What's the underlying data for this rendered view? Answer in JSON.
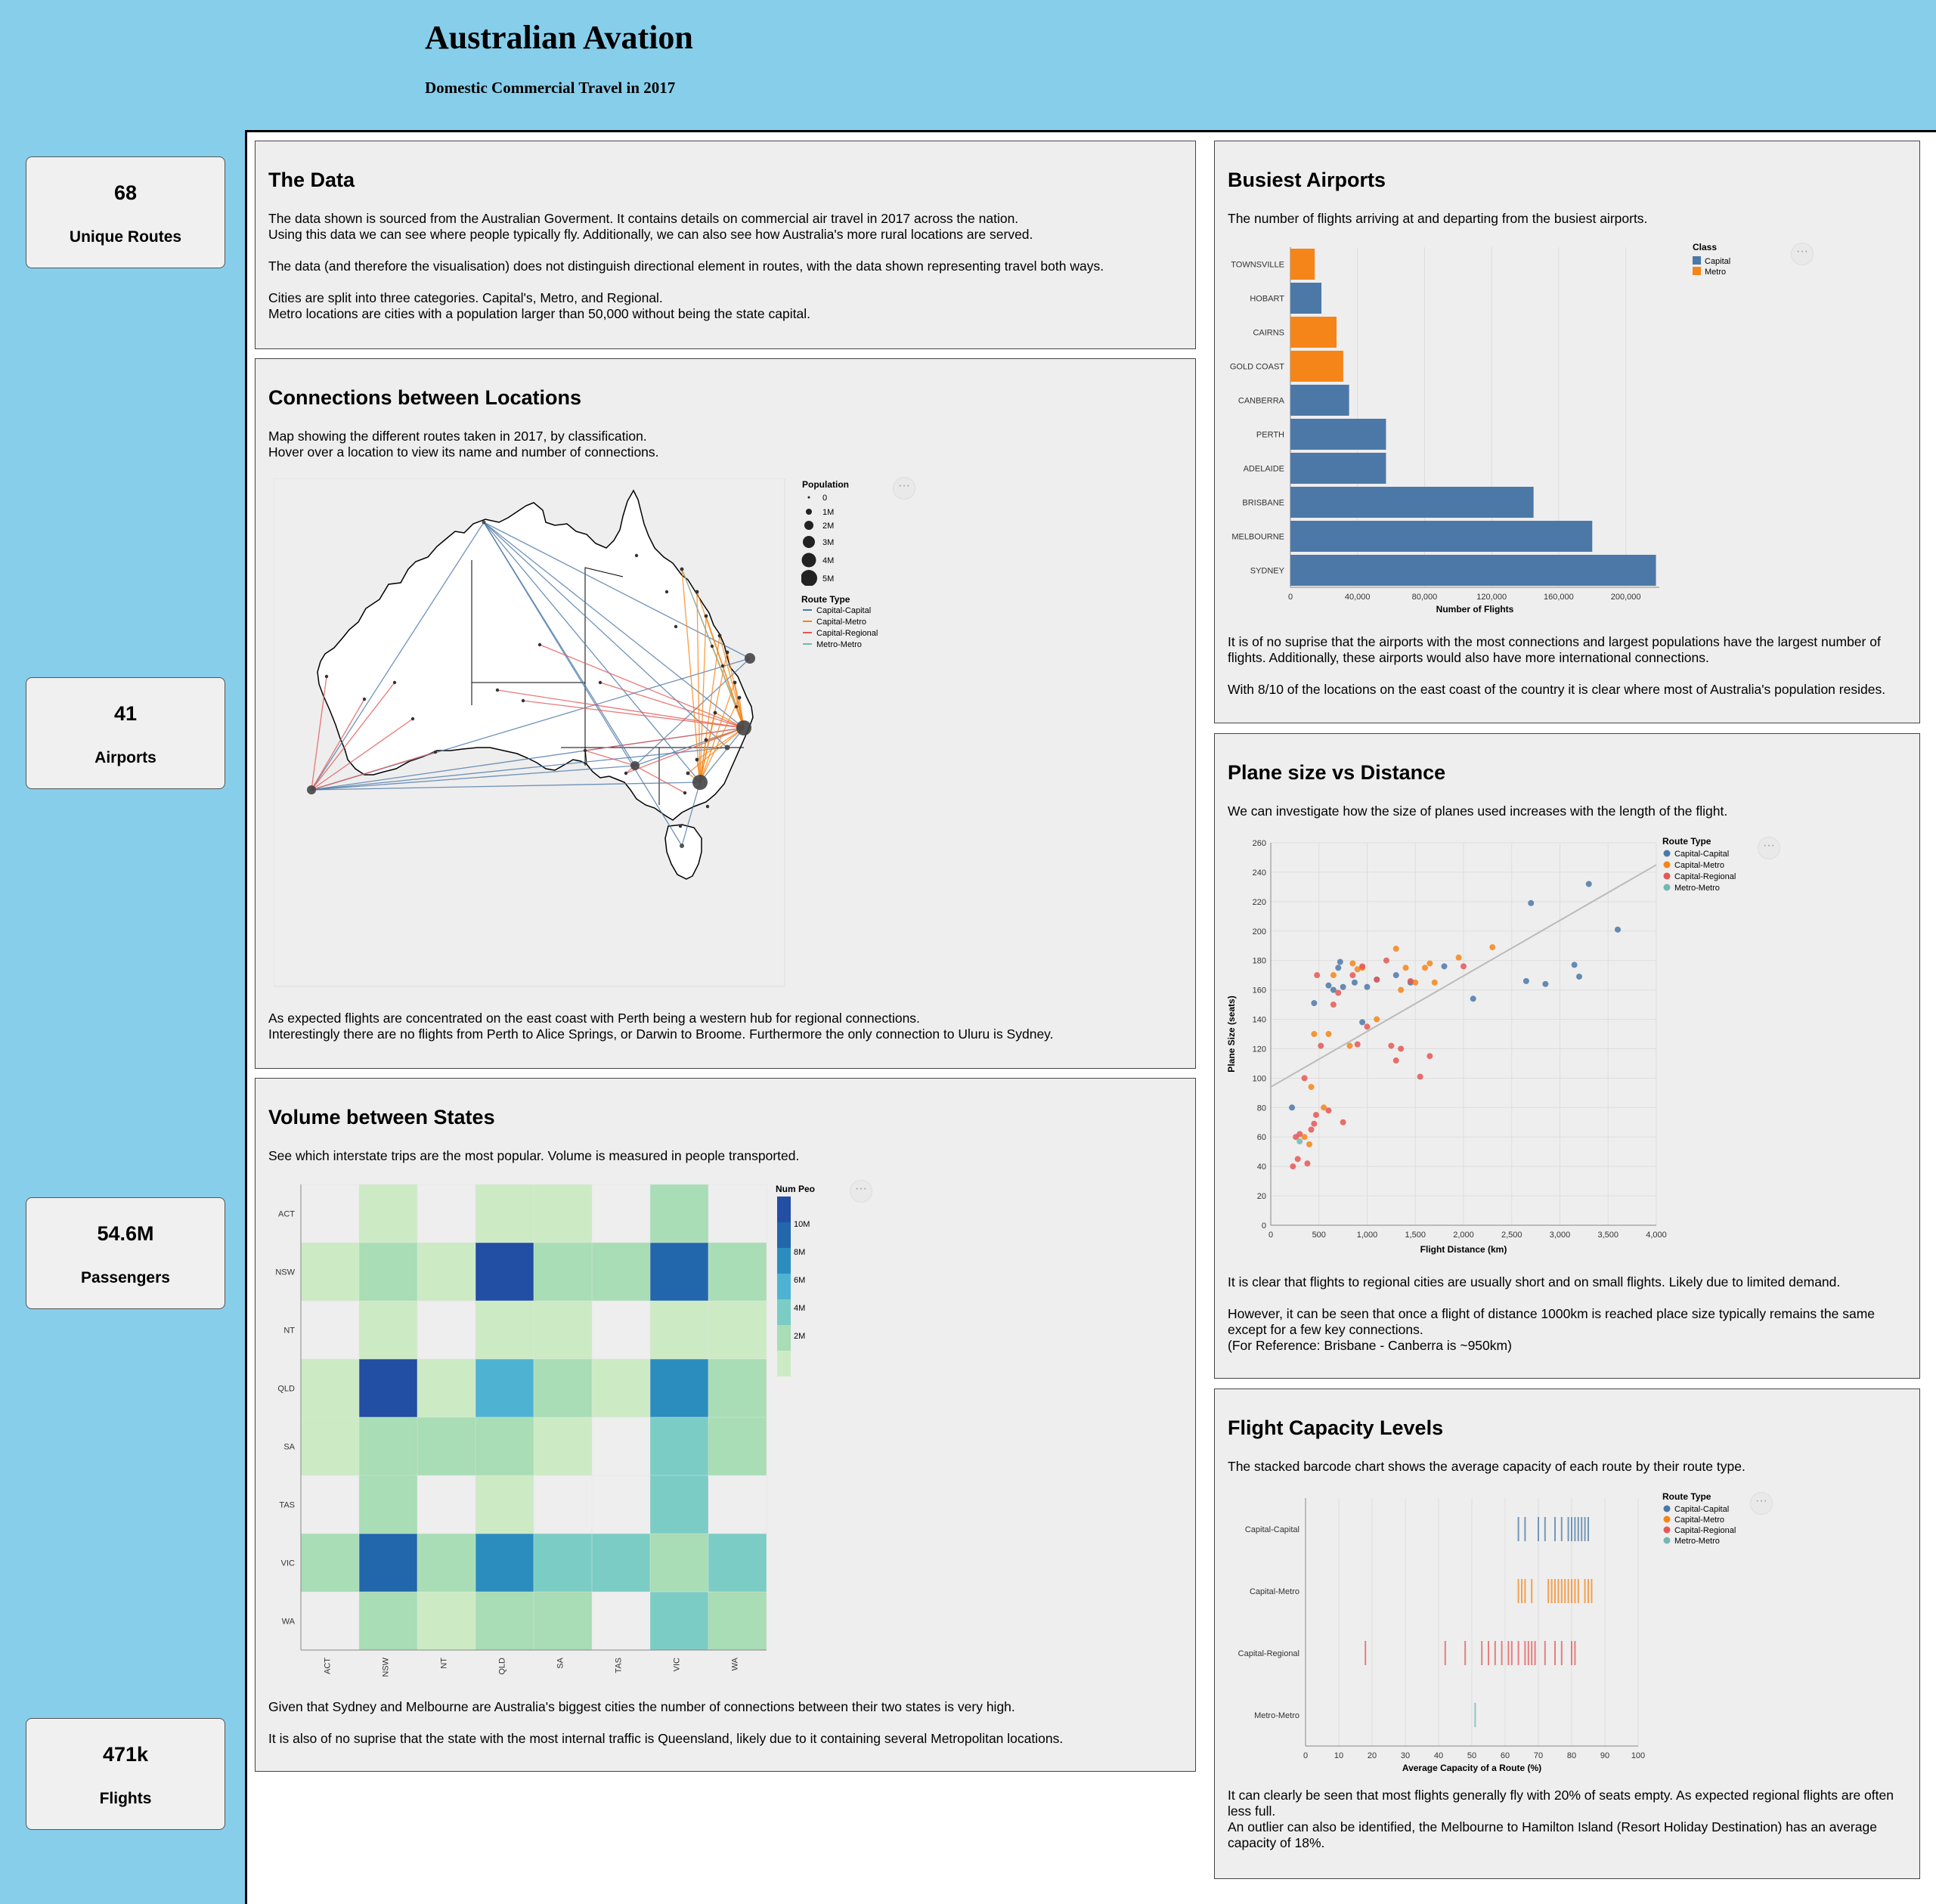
{
  "header": {
    "title": "Australian Avation",
    "subtitle": "Domestic Commercial Travel in 2017"
  },
  "kpis": [
    {
      "value": "68",
      "label": "Unique Routes"
    },
    {
      "value": "41",
      "label": "Airports"
    },
    {
      "value": "54.6M",
      "label": "Passengers"
    },
    {
      "value": "471k",
      "label": "Flights"
    }
  ],
  "colors": {
    "capital": "#4c78a8",
    "metro": "#f58518",
    "capital_capital": "#4c78a8",
    "capital_metro": "#f58518",
    "capital_regional": "#e45756",
    "metro_metro": "#72b7b2"
  },
  "panels": {
    "data": {
      "title": "The Data",
      "p1": "The data shown is sourced from the Australian Goverment. It contains details on commercial air travel in 2017 across the nation.\nUsing this data we can see where people typically fly. Additionally, we can also see how Australia's more rural locations are served.",
      "p2": "The data (and therefore the visualisation) does not distinguish directional element in routes, with the data shown representing travel both ways.",
      "p3": "Cities are split into three categories. Capital's, Metro, and Regional.\nMetro locations are cities with a population larger than 50,000 without being the state capital."
    },
    "connections": {
      "title": "Connections between Locations",
      "intro": "Map showing the different routes taken in 2017, by classification.\nHover over a location to view its name and number of connections.",
      "outro": "As expected flights are concentrated on the east coast with Perth being a western hub for regional connections.\nInterestingly there are no flights from Perth to Alice Springs, or Darwin to Broome. Furthermore the only connection to Uluru is Sydney.",
      "legend_population_title": "Population",
      "legend_population": [
        "0",
        "1M",
        "2M",
        "3M",
        "4M",
        "5M"
      ],
      "legend_route_title": "Route Type",
      "legend_routes": [
        "Capital-Capital",
        "Capital-Metro",
        "Capital-Regional",
        "Metro-Metro"
      ]
    },
    "volume": {
      "title": "Volume between States",
      "intro": "See which interstate trips are the most popular. Volume is measured in people transported.",
      "outro1": "Given that Sydney and Melbourne are Australia's biggest cities the number of connections between their two states is very high.",
      "outro2": "It is also of no suprise that the state with the most internal traffic is Queensland, likely due to it containing several Metropolitan locations.",
      "legend_title": "Num People",
      "legend_ticks": [
        "10M",
        "8M",
        "6M",
        "4M",
        "2M"
      ]
    },
    "busiest": {
      "title": "Busiest Airports",
      "intro": "The number of flights arriving at and departing from the busiest airports.",
      "outro1": "It is of no suprise that the airports with the most connections and largest populations have the largest number of flights. Additionally, these airports would also have more international connections.",
      "outro2": "With 8/10 of the locations on the east coast of the country it is clear where most of Australia's population resides.",
      "legend_title": "Class",
      "legend_items": [
        "Capital",
        "Metro"
      ]
    },
    "plane": {
      "title": "Plane size vs Distance",
      "intro": "We can investigate how the size of planes used increases with the length of the flight.",
      "outro1": "It is clear that flights to regional cities are usually short and on small flights. Likely due to limited demand.",
      "outro2": "However, it can be seen that once a flight of distance 1000km is reached place size typically remains the same except for a few key connections.\n(For Reference: Brisbane - Canberra is ~950km)",
      "legend_title": "Route Type",
      "legend_items": [
        "Capital-Capital",
        "Capital-Metro",
        "Capital-Regional",
        "Metro-Metro"
      ]
    },
    "capacity": {
      "title": "Flight Capacity Levels",
      "intro": "The stacked barcode chart shows the average capacity of each route by their route type.",
      "outro": "It can clearly be seen that most flights generally fly with 20% of seats empty. As expected regional flights are often less full.\nAn outlier can also be identified, the Melbourne to Hamilton Island (Resort Holiday Destination) has an average capacity of 18%.",
      "legend_title": "Route Type",
      "legend_items": [
        "Capital-Capital",
        "Capital-Metro",
        "Capital-Regional",
        "Metro-Metro"
      ]
    }
  },
  "chart_data": [
    {
      "id": "busiest-airports",
      "type": "bar",
      "categories": [
        "TOWNSVILLE",
        "HOBART",
        "CAIRNS",
        "GOLD COAST",
        "CANBERRA",
        "PERTH",
        "ADELAIDE",
        "BRISBANE",
        "MELBOURNE",
        "SYDNEY"
      ],
      "values": [
        14500,
        18500,
        27500,
        31500,
        35000,
        57000,
        57000,
        145000,
        180000,
        218000
      ],
      "class": [
        "Metro",
        "Capital",
        "Metro",
        "Metro",
        "Capital",
        "Capital",
        "Capital",
        "Capital",
        "Capital",
        "Capital"
      ],
      "xlabel": "Number of Flights",
      "xlim": [
        0,
        220000
      ],
      "xticks": [
        0,
        40000,
        80000,
        120000,
        160000,
        200000
      ],
      "xtick_labels": [
        "0",
        "40,000",
        "80,000",
        "120,000",
        "160,000",
        "200,000"
      ],
      "legend": "top-right"
    },
    {
      "id": "plane-size-distance",
      "type": "scatter",
      "xlabel": "Flight Distance (km)",
      "ylabel": "Plane Size (seats)",
      "xlim": [
        0,
        4000
      ],
      "ylim": [
        0,
        260
      ],
      "xticks": [
        0,
        500,
        1000,
        1500,
        2000,
        2500,
        3000,
        3500,
        4000
      ],
      "xtick_labels": [
        "0",
        "500",
        "1,000",
        "1,500",
        "2,000",
        "2,500",
        "3,000",
        "3,500",
        "4,000"
      ],
      "yticks": [
        0,
        20,
        40,
        60,
        80,
        100,
        120,
        140,
        160,
        180,
        200,
        220,
        240,
        260
      ],
      "trendline": [
        [
          0,
          94
        ],
        [
          4000,
          245
        ]
      ],
      "series": [
        {
          "name": "Capital-Capital",
          "points": [
            [
              220,
              80
            ],
            [
              450,
              151
            ],
            [
              600,
              163
            ],
            [
              650,
              160
            ],
            [
              700,
              175
            ],
            [
              720,
              179
            ],
            [
              750,
              162
            ],
            [
              870,
              165
            ],
            [
              950,
              138
            ],
            [
              1000,
              162
            ],
            [
              1100,
              167
            ],
            [
              1300,
              170
            ],
            [
              1450,
              165
            ],
            [
              1800,
              176
            ],
            [
              2100,
              154
            ],
            [
              2650,
              166
            ],
            [
              2700,
              219
            ],
            [
              2850,
              164
            ],
            [
              3150,
              177
            ],
            [
              3200,
              169
            ],
            [
              3300,
              232
            ],
            [
              3600,
              201
            ]
          ]
        },
        {
          "name": "Capital-Metro",
          "points": [
            [
              350,
              60
            ],
            [
              400,
              55
            ],
            [
              420,
              94
            ],
            [
              450,
              130
            ],
            [
              550,
              80
            ],
            [
              600,
              130
            ],
            [
              650,
              170
            ],
            [
              820,
              122
            ],
            [
              850,
              178
            ],
            [
              900,
              174
            ],
            [
              950,
              175
            ],
            [
              1100,
              140
            ],
            [
              1300,
              188
            ],
            [
              1350,
              160
            ],
            [
              1400,
              175
            ],
            [
              1500,
              165
            ],
            [
              1600,
              175
            ],
            [
              1650,
              178
            ],
            [
              1700,
              165
            ],
            [
              1950,
              182
            ],
            [
              2300,
              189
            ]
          ]
        },
        {
          "name": "Capital-Regional",
          "points": [
            [
              230,
              40
            ],
            [
              260,
              60
            ],
            [
              280,
              45
            ],
            [
              300,
              62
            ],
            [
              350,
              100
            ],
            [
              380,
              42
            ],
            [
              420,
              65
            ],
            [
              450,
              69
            ],
            [
              470,
              75
            ],
            [
              480,
              170
            ],
            [
              520,
              122
            ],
            [
              600,
              78
            ],
            [
              650,
              150
            ],
            [
              700,
              158
            ],
            [
              750,
              70
            ],
            [
              850,
              170
            ],
            [
              900,
              123
            ],
            [
              950,
              176
            ],
            [
              1000,
              135
            ],
            [
              1100,
              167
            ],
            [
              1200,
              180
            ],
            [
              1250,
              122
            ],
            [
              1300,
              112
            ],
            [
              1350,
              120
            ],
            [
              1450,
              166
            ],
            [
              1550,
              101
            ],
            [
              1650,
              115
            ],
            [
              2000,
              176
            ]
          ]
        },
        {
          "name": "Metro-Metro",
          "points": [
            [
              300,
              57
            ]
          ]
        }
      ],
      "legend": "top-right"
    },
    {
      "id": "state-volume",
      "type": "heatmap",
      "rows": [
        "ACT",
        "NSW",
        "NT",
        "QLD",
        "SA",
        "TAS",
        "VIC",
        "WA"
      ],
      "cols": [
        "ACT",
        "NSW",
        "NT",
        "QLD",
        "SA",
        "TAS",
        "VIC",
        "WA"
      ],
      "values_millions": [
        [
          null,
          0.5,
          null,
          0.5,
          0.5,
          null,
          0.9,
          null
        ],
        [
          0.5,
          0.6,
          0.5,
          11.0,
          0.7,
          0.7,
          8.5,
          0.9
        ],
        [
          null,
          0.5,
          null,
          0.5,
          0.5,
          null,
          0.5,
          0.5
        ],
        [
          0.5,
          11.0,
          0.5,
          5.0,
          0.8,
          0.5,
          7.0,
          0.9
        ],
        [
          0.5,
          0.9,
          0.6,
          0.9,
          0.5,
          null,
          3.0,
          0.6
        ],
        [
          null,
          0.7,
          null,
          0.5,
          null,
          null,
          3.0,
          null
        ],
        [
          0.9,
          8.5,
          0.7,
          7.0,
          3.0,
          3.0,
          1.2,
          3.2
        ],
        [
          null,
          0.9,
          0.5,
          0.9,
          0.6,
          null,
          3.2,
          0.8
        ]
      ],
      "legend_title": "Num People",
      "legend": "right"
    },
    {
      "id": "flight-capacity",
      "type": "scatter",
      "mark": "tick",
      "xlabel": "Average Capacity of a Route (%)",
      "xlim": [
        0,
        100
      ],
      "xticks": [
        0,
        10,
        20,
        30,
        40,
        50,
        60,
        70,
        80,
        90,
        100
      ],
      "categories": [
        "Capital-Capital",
        "Capital-Metro",
        "Capital-Regional",
        "Metro-Metro"
      ],
      "values": [
        [
          64,
          66,
          70,
          72,
          75,
          77,
          79,
          80,
          81,
          82,
          83,
          84,
          85
        ],
        [
          64,
          65,
          66,
          68,
          73,
          74,
          75,
          76,
          77,
          78,
          79,
          80,
          81,
          82,
          84,
          85,
          86
        ],
        [
          18,
          42,
          48,
          53,
          55,
          57,
          59,
          61,
          62,
          64,
          66,
          67,
          68,
          69,
          72,
          75,
          77,
          80,
          81
        ],
        [
          51
        ]
      ],
      "legend": "top-right"
    }
  ]
}
